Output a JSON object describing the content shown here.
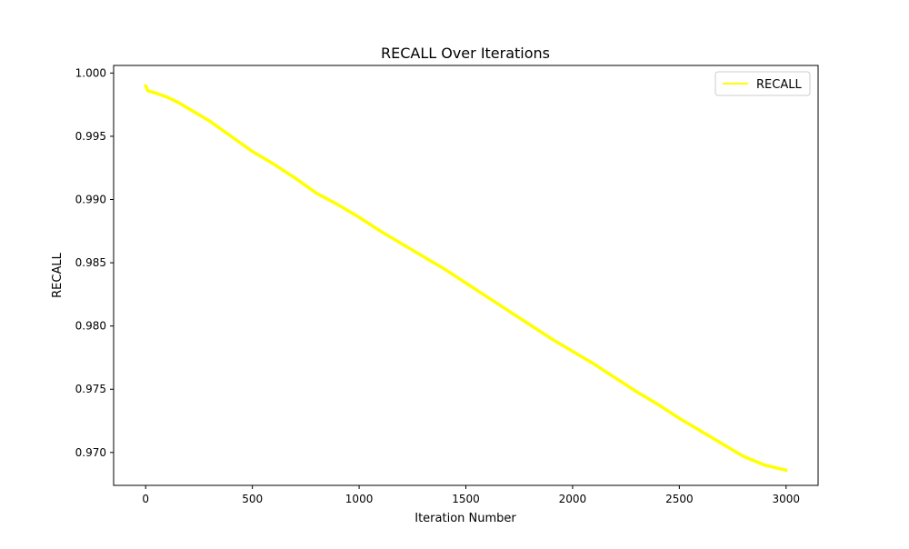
{
  "chart_data": {
    "type": "line",
    "title": "RECALL Over Iterations",
    "xlabel": "Iteration Number",
    "ylabel": "RECALL",
    "xlim": [
      -150,
      3150
    ],
    "ylim": [
      0.9674,
      1.0006
    ],
    "xticks": [
      0,
      500,
      1000,
      1500,
      2000,
      2500,
      3000
    ],
    "xtick_labels": [
      "0",
      "500",
      "1000",
      "1500",
      "2000",
      "2500",
      "3000"
    ],
    "yticks": [
      0.97,
      0.975,
      0.98,
      0.985,
      0.99,
      0.995,
      1.0
    ],
    "ytick_labels": [
      "0.970",
      "0.975",
      "0.980",
      "0.985",
      "0.990",
      "0.995",
      "1.000"
    ],
    "grid": false,
    "legend_position": "top-right",
    "series": [
      {
        "name": "RECALL",
        "color": "#ffff00",
        "x": [
          0,
          10,
          50,
          100,
          150,
          200,
          250,
          300,
          400,
          500,
          600,
          700,
          800,
          900,
          1000,
          1100,
          1200,
          1300,
          1400,
          1500,
          1600,
          1700,
          1800,
          1900,
          2000,
          2100,
          2200,
          2300,
          2400,
          2500,
          2600,
          2700,
          2800,
          2900,
          3000
        ],
        "y": [
          0.999,
          0.9986,
          0.9984,
          0.9981,
          0.9977,
          0.9972,
          0.9967,
          0.9962,
          0.995,
          0.9938,
          0.9928,
          0.9917,
          0.9905,
          0.9896,
          0.9886,
          0.9875,
          0.9865,
          0.9855,
          0.9845,
          0.9834,
          0.9823,
          0.9812,
          0.9801,
          0.979,
          0.978,
          0.977,
          0.9759,
          0.9748,
          0.9738,
          0.9727,
          0.9717,
          0.9707,
          0.9697,
          0.969,
          0.9686
        ]
      }
    ]
  }
}
